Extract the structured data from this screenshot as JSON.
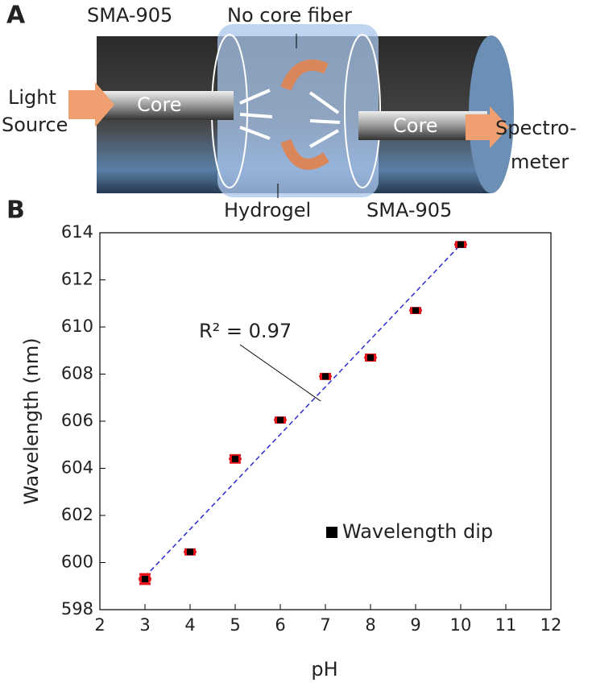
{
  "panel_a": {
    "label": "A",
    "sma_top": "SMA-905",
    "no_core_fiber": "No core fiber",
    "light_source": [
      "Light",
      "Source"
    ],
    "core_left": "Core",
    "core_right": "Core",
    "spectrometer": [
      "Spectro-",
      "meter"
    ],
    "hydrogel": "Hydrogel",
    "sma_bottom": "SMA-905"
  },
  "chart_data": {
    "type": "scatter",
    "panel_label": "B",
    "x_label": "pH",
    "y_label": "Wavelength (nm)",
    "xlim": [
      2,
      12
    ],
    "xticks": [
      2,
      3,
      4,
      5,
      6,
      7,
      8,
      9,
      10,
      11,
      12
    ],
    "ylim": [
      598,
      614
    ],
    "yticks": [
      598,
      600,
      602,
      604,
      606,
      608,
      610,
      612,
      614
    ],
    "series": [
      {
        "name": "Wavelength dip",
        "color": "#000000",
        "error_color": "#e8131b",
        "x": [
          3,
          4,
          5,
          6,
          7,
          8,
          9,
          10
        ],
        "values": [
          599.3,
          600.45,
          604.4,
          606.05,
          607.9,
          608.7,
          610.7,
          613.5
        ],
        "errors": [
          0.2,
          0.1,
          0.15,
          0.1,
          0.1,
          0.12,
          0.1,
          0.1
        ]
      }
    ],
    "fit": {
      "x": [
        3,
        10
      ],
      "values": [
        599.4,
        613.5
      ],
      "color": "#2a2ad0"
    },
    "annotation": "R² = 0.97",
    "legend": "right-middle"
  }
}
